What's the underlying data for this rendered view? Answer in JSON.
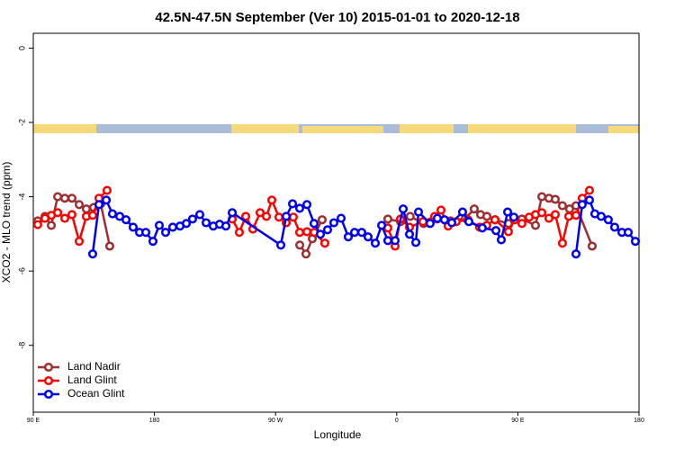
{
  "chart_data": {
    "type": "line",
    "title": "42.5N-47.5N September (Ver 10)   2015-01-01 to 2020-12-18",
    "x_label": "Longitude",
    "y_label": "XCO2 - MLO trend (ppm)",
    "xlim": [
      90,
      540
    ],
    "ylim": [
      -9.8,
      0.4
    ],
    "xticks": [
      {
        "value": 90,
        "label": "90 E"
      },
      180,
      {
        "value": 270,
        "label": "90 W"
      },
      {
        "value": 360,
        "label": "0"
      },
      {
        "value": 450,
        "label": "90 E"
      },
      {
        "value": 540,
        "label": "180"
      }
    ],
    "yticks": [
      0,
      -2,
      -4,
      -6,
      -8
    ],
    "grid": false,
    "legend": "lower left",
    "series": [
      {
        "name": "Land Nadir",
        "color": "#9c3030",
        "x": [
          93.3,
          98.7,
          103.4,
          108.1,
          113.4,
          118.7,
          124.1,
          129.4,
          134.8,
          140.1,
          146.8,
          null,
          288,
          292.6,
          297.3,
          304.6,
          null,
          353.4,
          362.8,
          370,
          380,
          390,
          400,
          411,
          417.6,
          422.3,
          427,
          433,
          443,
          453,
          463.1,
          467.8,
          473.1,
          477.8,
          483.1,
          488.4,
          493.2,
          505.2
        ],
        "values": [
          -4.65,
          -4.53,
          -4.77,
          -4.0,
          -4.04,
          -4.04,
          -4.21,
          -4.33,
          -4.29,
          -4.19,
          -5.33,
          null,
          -5.3,
          -5.54,
          -5.13,
          -4.62,
          null,
          -4.6,
          -4.67,
          -4.53,
          -4.72,
          -4.6,
          -4.65,
          -4.58,
          -4.33,
          -4.48,
          -4.53,
          -4.62,
          -4.72,
          -4.6,
          -4.77,
          -4.0,
          -4.04,
          -4.07,
          -4.24,
          -4.33,
          -4.24,
          -5.33
        ]
      },
      {
        "name": "Land Glint",
        "color": "#ff0000",
        "x": [
          93.3,
          98.7,
          103.4,
          108.1,
          113.4,
          118.7,
          124.1,
          129.4,
          134.1,
          138.8,
          144.8,
          null,
          237.8,
          243.1,
          247.8,
          253.1,
          258.5,
          263.2,
          267.2,
          272.5,
          277.9,
          283.2,
          287.9,
          293.3,
          298.6,
          306.6,
          null,
          353.4,
          358.8,
          362.8,
          369.5,
          379.5,
          388.2,
          392.9,
          398.2,
          404.2,
          412.9,
          421.6,
          426.9,
          433,
          443,
          447.7,
          453,
          458.4,
          463.1,
          467.8,
          473.1,
          477.8,
          483.1,
          487.8,
          493.2,
          497.8,
          503.2
        ],
        "values": [
          -4.75,
          -4.58,
          -4.5,
          -4.43,
          -4.58,
          -4.48,
          -5.2,
          -4.53,
          -4.5,
          -4.04,
          -3.83,
          null,
          -4.6,
          -4.96,
          -4.53,
          -4.87,
          -4.43,
          -4.53,
          -4.09,
          -4.55,
          -4.7,
          -4.55,
          -4.96,
          -4.94,
          -4.96,
          -5.25,
          null,
          -4.84,
          -5.33,
          -4.6,
          -4.82,
          -4.67,
          -4.53,
          -4.36,
          -4.79,
          -4.67,
          -4.62,
          -4.82,
          -4.77,
          -4.62,
          -4.94,
          -4.62,
          -4.72,
          -4.55,
          -4.48,
          -4.43,
          -4.58,
          -4.48,
          -5.25,
          -4.53,
          -4.5,
          -4.04,
          -3.83
        ]
      },
      {
        "name": "Ocean Glint",
        "color": "#0000ee",
        "x": [
          134.1,
          138.8,
          144.2,
          148.8,
          154.2,
          158.9,
          164.2,
          168.9,
          173.6,
          178.9,
          183.6,
          188.3,
          193.6,
          199,
          203.7,
          208.3,
          213.7,
          218.4,
          223.7,
          228.4,
          233.1,
          237.8,
          273.9,
          277.9,
          282.6,
          287.9,
          293.3,
          298.6,
          303.3,
          308.6,
          313.3,
          318.7,
          324,
          328.7,
          334,
          338.7,
          344.1,
          348.8,
          353.4,
          358.8,
          364.8,
          369.5,
          374.2,
          376.2,
          384.8,
          390.2,
          395.5,
          400.9,
          408.9,
          413.6,
          423.6,
          433.7,
          437.7,
          442.4,
          447,
          null,
          493.2,
          497.8,
          503.2,
          507.2,
          511.9,
          517.2,
          521.9,
          527.3,
          532,
          537.3
        ],
        "values": [
          -5.54,
          -4.21,
          -4.09,
          -4.46,
          -4.53,
          -4.62,
          -4.82,
          -4.96,
          -4.96,
          -5.2,
          -4.77,
          -4.96,
          -4.82,
          -4.79,
          -4.72,
          -4.6,
          -4.48,
          -4.7,
          -4.79,
          -4.74,
          -4.79,
          -4.43,
          -5.3,
          -4.53,
          -4.19,
          -4.31,
          -4.21,
          -4.72,
          -5.01,
          -4.89,
          -4.7,
          -4.58,
          -5.08,
          -4.96,
          -4.96,
          -5.08,
          -5.25,
          -4.77,
          -5.18,
          -5.18,
          -4.33,
          -5.01,
          -5.23,
          -4.41,
          -4.72,
          -4.58,
          -4.62,
          -4.7,
          -4.41,
          -4.67,
          -4.84,
          -4.91,
          -5.16,
          -4.41,
          -4.55,
          null,
          -5.54,
          -4.21,
          -4.09,
          -4.46,
          -4.53,
          -4.62,
          -4.82,
          -4.96,
          -4.96,
          -5.2
        ]
      }
    ]
  }
}
